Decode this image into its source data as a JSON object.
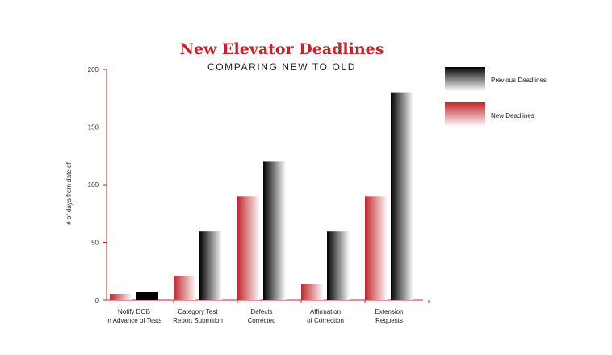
{
  "chart_data": {
    "type": "bar",
    "title": "New Elevator Deadlines",
    "subtitle": "COMPARING NEW TO OLD",
    "ylabel": "# of days from date of",
    "xlabel": "",
    "ylim": [
      0,
      200
    ],
    "yticks": [
      0,
      50,
      100,
      150,
      200
    ],
    "categories": [
      [
        "Notify DOB",
        "in Advance of Tests"
      ],
      [
        "Category Test",
        "Report Submition"
      ],
      [
        "Defects",
        "Corrected"
      ],
      [
        "Affirmation",
        "of Correction"
      ],
      [
        "Extension",
        "Requests"
      ]
    ],
    "series": [
      {
        "name": "New Deadlines",
        "values": [
          5,
          21,
          90,
          14,
          90
        ],
        "color": "#c0272d"
      },
      {
        "name": "Previous Deadlines",
        "values": [
          7,
          60,
          120,
          60,
          180
        ],
        "color": "#000000"
      }
    ],
    "legend_position": "top-right",
    "grid": false
  }
}
